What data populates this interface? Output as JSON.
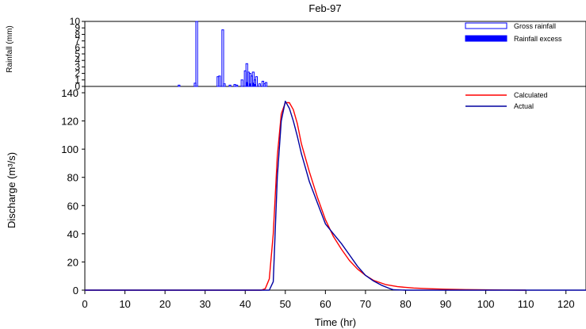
{
  "chart_data": [
    {
      "panel": "rainfall",
      "type": "bar",
      "title": "Feb-97",
      "ylabel": "Rainfall (mm)",
      "ylim": [
        0,
        10
      ],
      "y_ticks": [
        0,
        1,
        2,
        3,
        4,
        5,
        6,
        7,
        8,
        9,
        10
      ],
      "y_reversed": false,
      "legend_position": "top-right",
      "series": [
        {
          "name": "Gross rainfall",
          "color": "#0000ff",
          "style": "outline",
          "x": [
            23.5,
            27.5,
            27.9,
            33.2,
            33.6,
            34.4,
            34.8,
            36.2,
            37.4,
            37.9,
            39.2,
            40.0,
            40.4,
            40.8,
            41.2,
            41.6,
            42.0,
            42.4,
            42.8,
            43.6,
            44.4,
            44.8,
            45.2
          ],
          "values": [
            0.2,
            0.5,
            10.0,
            1.5,
            1.6,
            8.7,
            0.4,
            0.2,
            0.3,
            0.2,
            1.0,
            2.4,
            3.5,
            2.2,
            2.0,
            1.6,
            2.2,
            1.0,
            1.5,
            0.4,
            0.8,
            0.4,
            0.6
          ]
        },
        {
          "name": "Rainfall excess",
          "color": "#0000ff",
          "style": "filled",
          "x": [
            40.4,
            41.2,
            42.0,
            42.4
          ],
          "values": [
            0.6,
            0.4,
            0.5,
            0.3
          ]
        }
      ]
    },
    {
      "panel": "discharge",
      "type": "line",
      "xlabel": "Time (hr)",
      "ylabel": "Discharge (m³/s)",
      "xlim": [
        0,
        125
      ],
      "ylim": [
        0,
        140
      ],
      "x_ticks": [
        0,
        10,
        20,
        30,
        40,
        50,
        60,
        70,
        80,
        90,
        100,
        110,
        120
      ],
      "y_ticks": [
        0,
        20,
        40,
        60,
        80,
        100,
        120,
        140
      ],
      "legend_position": "top-right",
      "series": [
        {
          "name": "Calculated",
          "color": "#ff0000",
          "x": [
            0,
            44,
            45,
            46,
            47,
            48,
            49,
            50,
            51,
            52,
            53,
            54,
            56,
            58,
            60,
            62,
            64,
            66,
            68,
            70,
            72,
            75,
            78,
            82,
            86,
            90,
            95,
            100,
            105,
            110
          ],
          "values": [
            0,
            0,
            1,
            8,
            40,
            95,
            125,
            133,
            133,
            128,
            118,
            104,
            84,
            66,
            50,
            38,
            29,
            21,
            15,
            10.5,
            7,
            4,
            2.5,
            1.5,
            1.0,
            0.7,
            0.4,
            0.2,
            0.1,
            0
          ]
        },
        {
          "name": "Actual",
          "color": "#0000a0",
          "x": [
            0,
            46,
            47,
            48,
            49,
            50,
            51,
            52,
            53,
            54,
            55,
            56,
            58,
            60,
            62,
            64,
            66,
            68,
            70,
            72,
            74,
            76,
            77,
            80,
            90,
            110,
            125
          ],
          "values": [
            0,
            0,
            6,
            80,
            120,
            134,
            129,
            120,
            109,
            97,
            87,
            77,
            62,
            47,
            40,
            33,
            25,
            17,
            10.5,
            6.5,
            3.5,
            1.2,
            0.3,
            0,
            0,
            0,
            0
          ]
        }
      ]
    }
  ]
}
